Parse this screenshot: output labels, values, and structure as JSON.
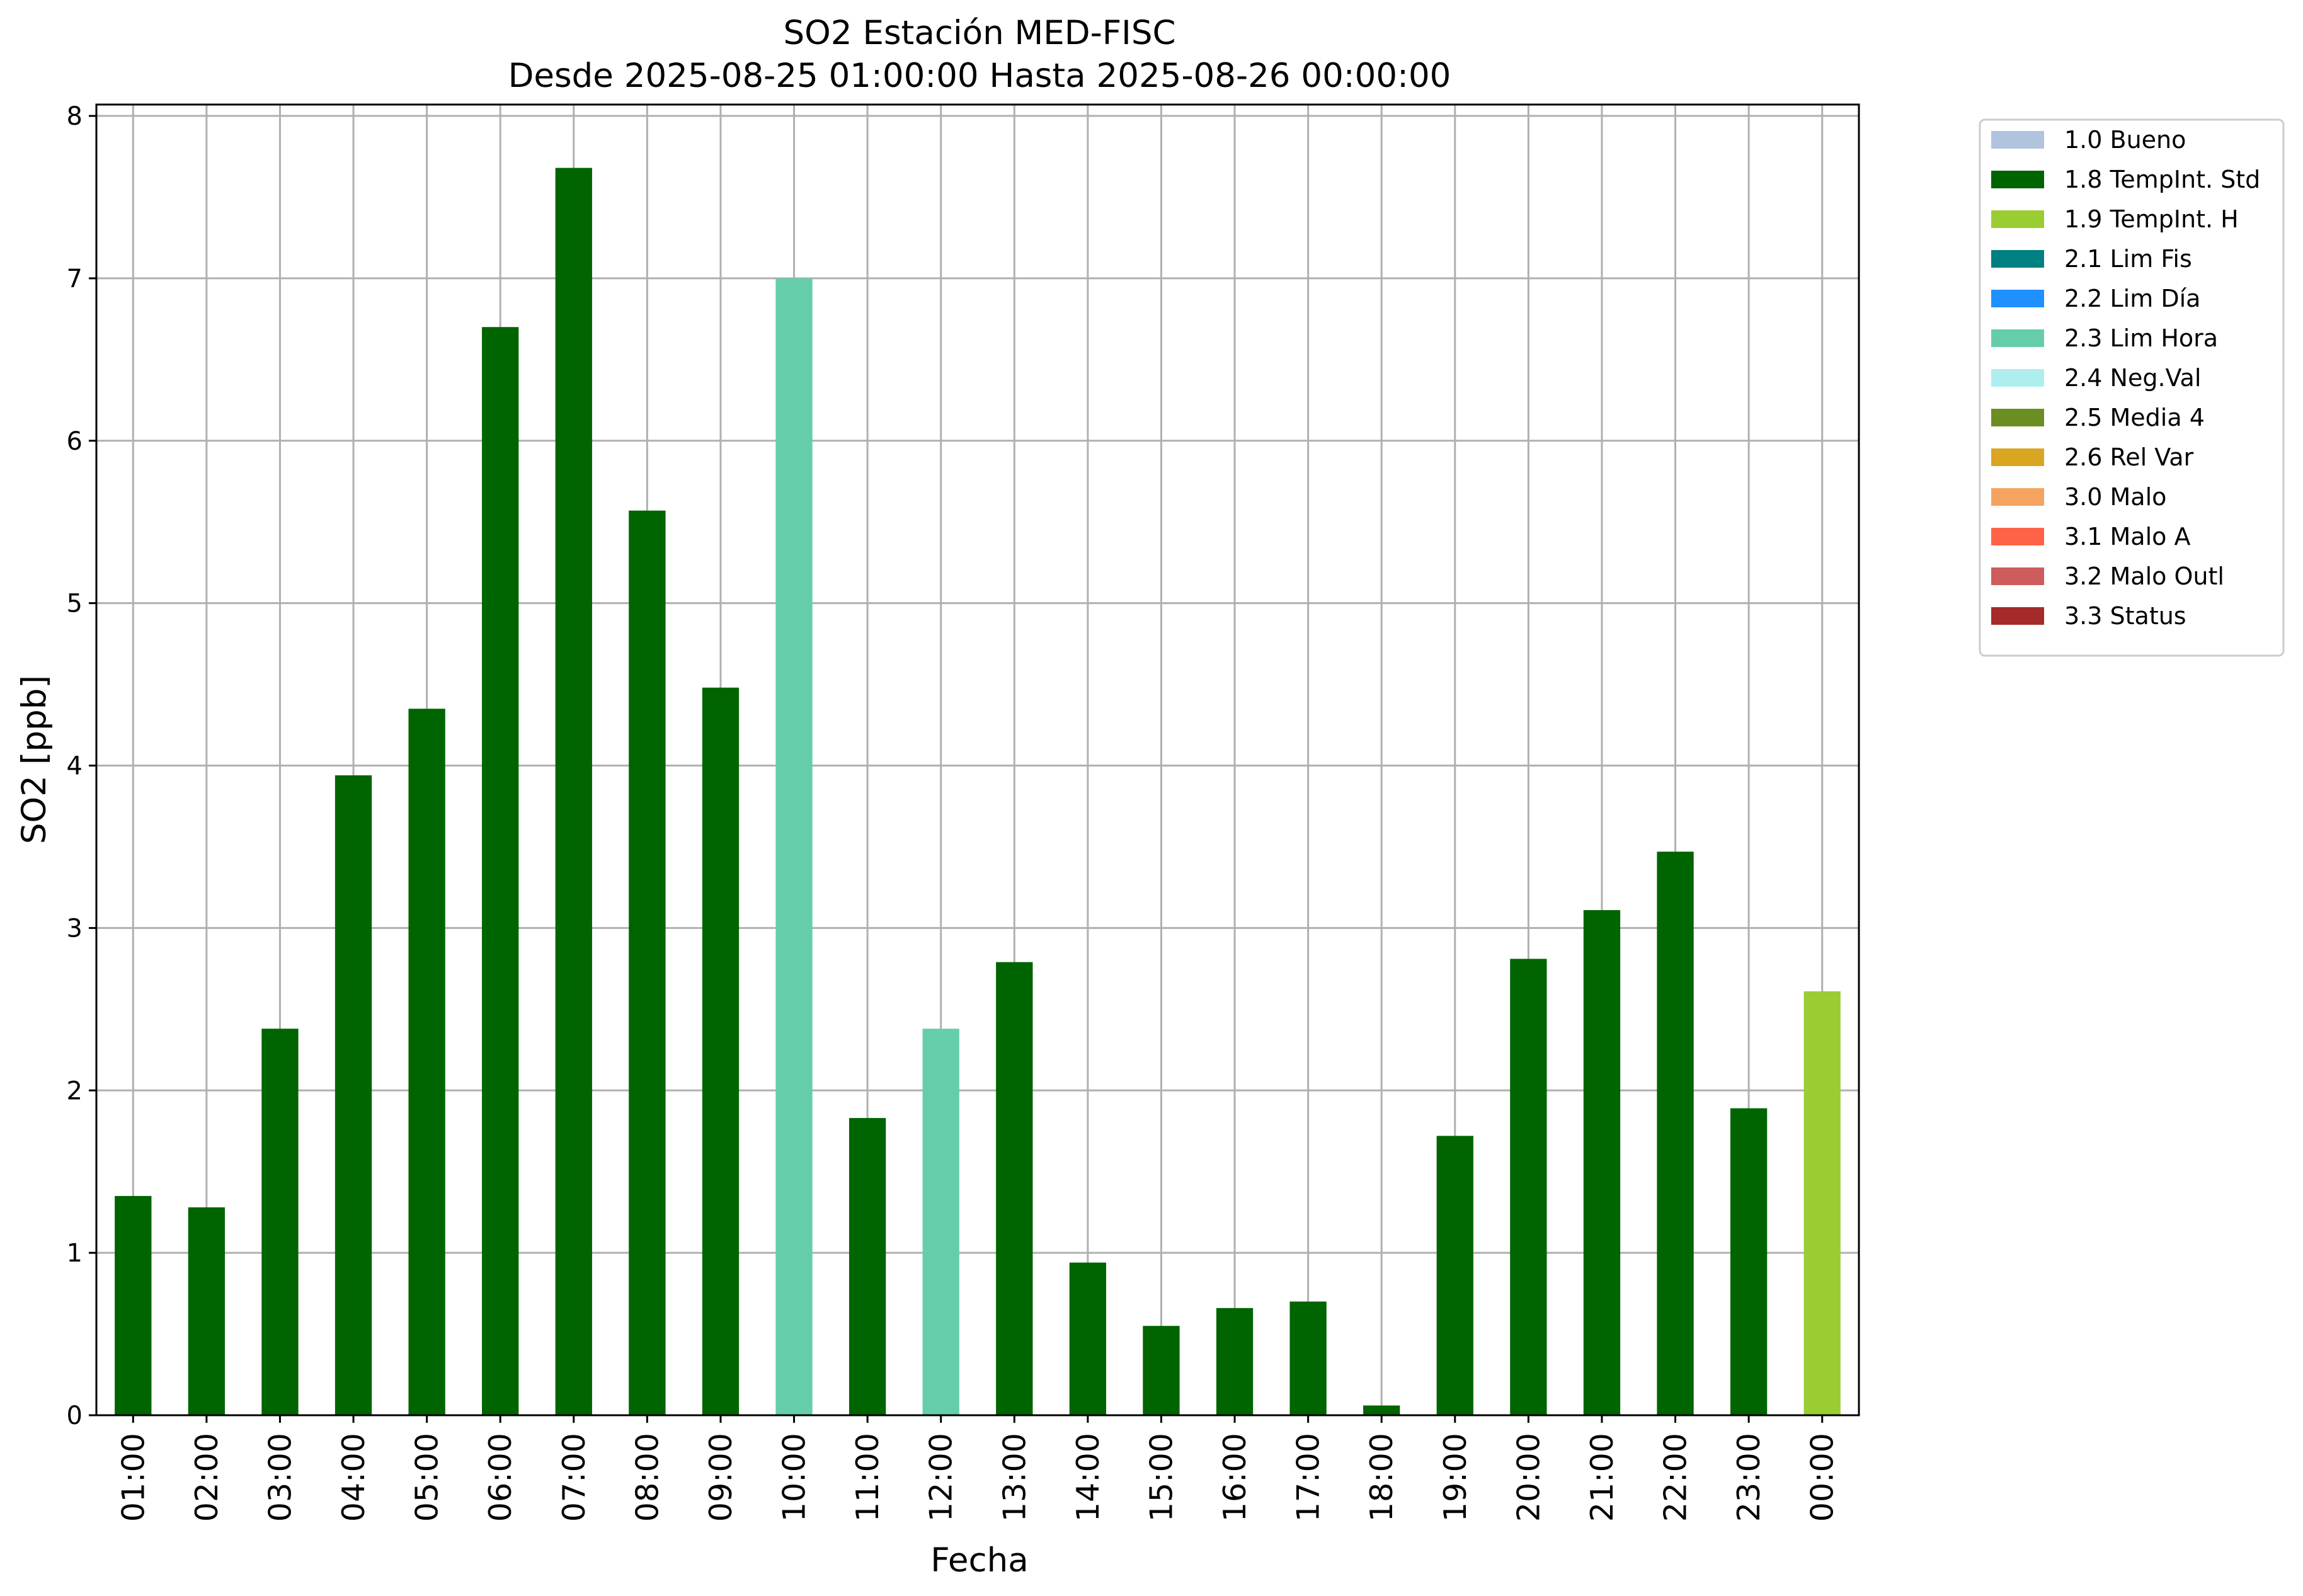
{
  "chart_data": {
    "type": "bar",
    "title": "SO2 Estación MED-FISC",
    "subtitle": "Desde 2025-08-25 01:00:00 Hasta 2025-08-26 00:00:00",
    "xlabel": "Fecha",
    "ylabel": "SO2 [ppb]",
    "ylim": [
      0,
      8.07
    ],
    "yticks": [
      0,
      1,
      2,
      3,
      4,
      5,
      6,
      7,
      8
    ],
    "grid": true,
    "legend_position": "outside-top-right",
    "categories": [
      "01:00",
      "02:00",
      "03:00",
      "04:00",
      "05:00",
      "06:00",
      "07:00",
      "08:00",
      "09:00",
      "10:00",
      "11:00",
      "12:00",
      "13:00",
      "14:00",
      "15:00",
      "16:00",
      "17:00",
      "18:00",
      "19:00",
      "20:00",
      "21:00",
      "22:00",
      "23:00",
      "00:00"
    ],
    "values": [
      1.35,
      1.28,
      2.38,
      3.94,
      4.35,
      6.7,
      7.68,
      5.57,
      4.48,
      7.0,
      1.83,
      2.38,
      2.79,
      0.94,
      0.55,
      0.66,
      0.7,
      0.06,
      1.72,
      2.81,
      3.11,
      3.47,
      1.89,
      2.61
    ],
    "flags": [
      "1.8",
      "1.8",
      "1.8",
      "1.8",
      "1.8",
      "1.8",
      "1.8",
      "1.8",
      "1.8",
      "2.3",
      "1.8",
      "2.3",
      "1.8",
      "1.8",
      "1.8",
      "1.8",
      "1.8",
      "1.8",
      "1.8",
      "1.8",
      "1.8",
      "1.8",
      "1.8",
      "1.9"
    ],
    "legend": [
      {
        "code": "1.0",
        "label": "1.0 Bueno",
        "color": "#b0c4de"
      },
      {
        "code": "1.8",
        "label": "1.8 TempInt. Std",
        "color": "#006400"
      },
      {
        "code": "1.9",
        "label": "1.9 TempInt. H",
        "color": "#9acd32"
      },
      {
        "code": "2.1",
        "label": "2.1 Lim Fis",
        "color": "#008080"
      },
      {
        "code": "2.2",
        "label": "2.2 Lim Día",
        "color": "#1e90ff"
      },
      {
        "code": "2.3",
        "label": "2.3 Lim Hora",
        "color": "#66cdaa"
      },
      {
        "code": "2.4",
        "label": "2.4 Neg.Val",
        "color": "#afeeee"
      },
      {
        "code": "2.5",
        "label": "2.5 Media 4",
        "color": "#6b8e23"
      },
      {
        "code": "2.6",
        "label": "2.6 Rel Var",
        "color": "#daa520"
      },
      {
        "code": "3.0",
        "label": "3.0 Malo",
        "color": "#f4a460"
      },
      {
        "code": "3.1",
        "label": "3.1 Malo A",
        "color": "#ff6347"
      },
      {
        "code": "3.2",
        "label": "3.2 Malo Outl",
        "color": "#cd5c5c"
      },
      {
        "code": "3.3",
        "label": "3.3 Status",
        "color": "#a52a2a"
      }
    ]
  }
}
